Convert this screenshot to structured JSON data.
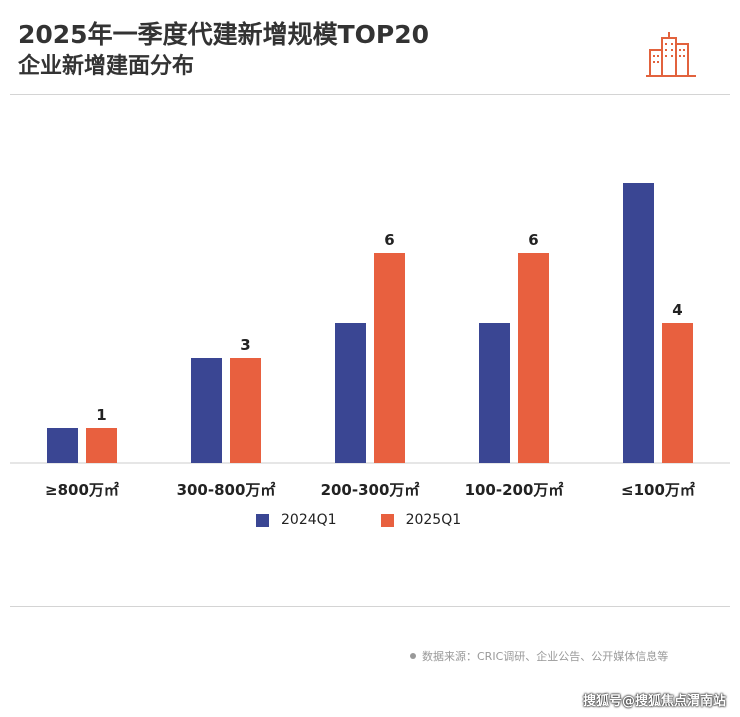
{
  "header": {
    "title_line1": "2025年一季度代建新增规模TOP20",
    "title_line2": "企业新增建面分布"
  },
  "logo": {
    "icon": "city-buildings-icon",
    "color": "#e2623d"
  },
  "chart_data": {
    "type": "bar",
    "categories": [
      "≥800万㎡",
      "300-800万㎡",
      "200-300万㎡",
      "100-200万㎡",
      "≤100万㎡"
    ],
    "series": [
      {
        "name": "2024Q1",
        "color": "#3a4693",
        "values": [
          1,
          3,
          4,
          4,
          8
        ]
      },
      {
        "name": "2025Q1",
        "color": "#e8603f",
        "values": [
          1,
          3,
          6,
          6,
          4
        ]
      }
    ],
    "data_labels": {
      "2025Q1": [
        "1",
        "3",
        "6",
        "6",
        "4"
      ]
    },
    "ylim": [
      0,
      8
    ],
    "title": "",
    "xlabel": "",
    "ylabel": "",
    "grid": false,
    "legend_position": "bottom-center"
  },
  "legend": {
    "items": [
      "2024Q1",
      "2025Q1"
    ]
  },
  "footer": {
    "source": "数据来源：CRIC调研、企业公告、公开媒体信息等",
    "credit": "搜狐号@搜狐焦点渭南站"
  }
}
